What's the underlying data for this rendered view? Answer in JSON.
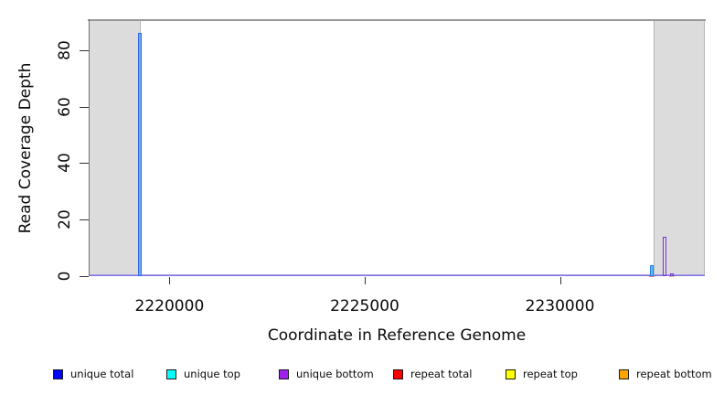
{
  "figure": {
    "kind": "read coverage depth plot"
  },
  "chart_data": {
    "type": "bar",
    "title": "",
    "xlabel": "Coordinate in Reference Genome",
    "ylabel": "Read Coverage Depth",
    "xlim": [
      2217930,
      2233710
    ],
    "ylim": [
      0,
      91
    ],
    "x_ticks": [
      2220000,
      2225000,
      2230000
    ],
    "y_ticks": [
      0,
      20,
      40,
      60,
      80
    ],
    "grid": false,
    "legend_position": "bottom",
    "colors": {
      "baseline": "#7b6fe6",
      "shaded_region": "#dcdcdc",
      "frame_top": "#979797"
    },
    "shaded_regions": [
      {
        "name": "masked-region-left",
        "x0": 2217930,
        "x1": 2219260
      },
      {
        "name": "masked-region-right",
        "x0": 2232400,
        "x1": 2233710
      }
    ],
    "baseline_value": 0,
    "bars": [
      {
        "series": "unique total",
        "x": 2219250,
        "y": 86,
        "edge": "#2c6ce4",
        "fill": "#7aa6f0"
      },
      {
        "series": "unique top",
        "x": 2232350,
        "y": 4,
        "edge": "#2b77e8",
        "fill": "#48cdf2"
      },
      {
        "series": "unique bottom",
        "x": 2232680,
        "y": 14,
        "edge": "#7b2fe0",
        "fill": "transparent"
      },
      {
        "series": "unique bottom",
        "x": 2232870,
        "y": 1,
        "edge": "#7b2fe0",
        "fill": "transparent"
      },
      {
        "series": "repeat total",
        "x": 2232350,
        "y": 0.6,
        "edge": "#ef8484",
        "fill": "#ef8484",
        "base_mark": true
      },
      {
        "series": "repeat top",
        "x": 2232860,
        "y": 0.4,
        "edge": "#e8d27a",
        "fill": "#e8d27a",
        "base_mark": true
      }
    ]
  },
  "legend": {
    "items": [
      {
        "label": "unique total",
        "color": "#0000ff"
      },
      {
        "label": "unique top",
        "color": "#00ffff"
      },
      {
        "label": "unique bottom",
        "color": "#a020f0"
      },
      {
        "label": "repeat total",
        "color": "#ff0000"
      },
      {
        "label": "repeat top",
        "color": "#ffff00"
      },
      {
        "label": "repeat bottom",
        "color": "#ffa500"
      }
    ]
  }
}
